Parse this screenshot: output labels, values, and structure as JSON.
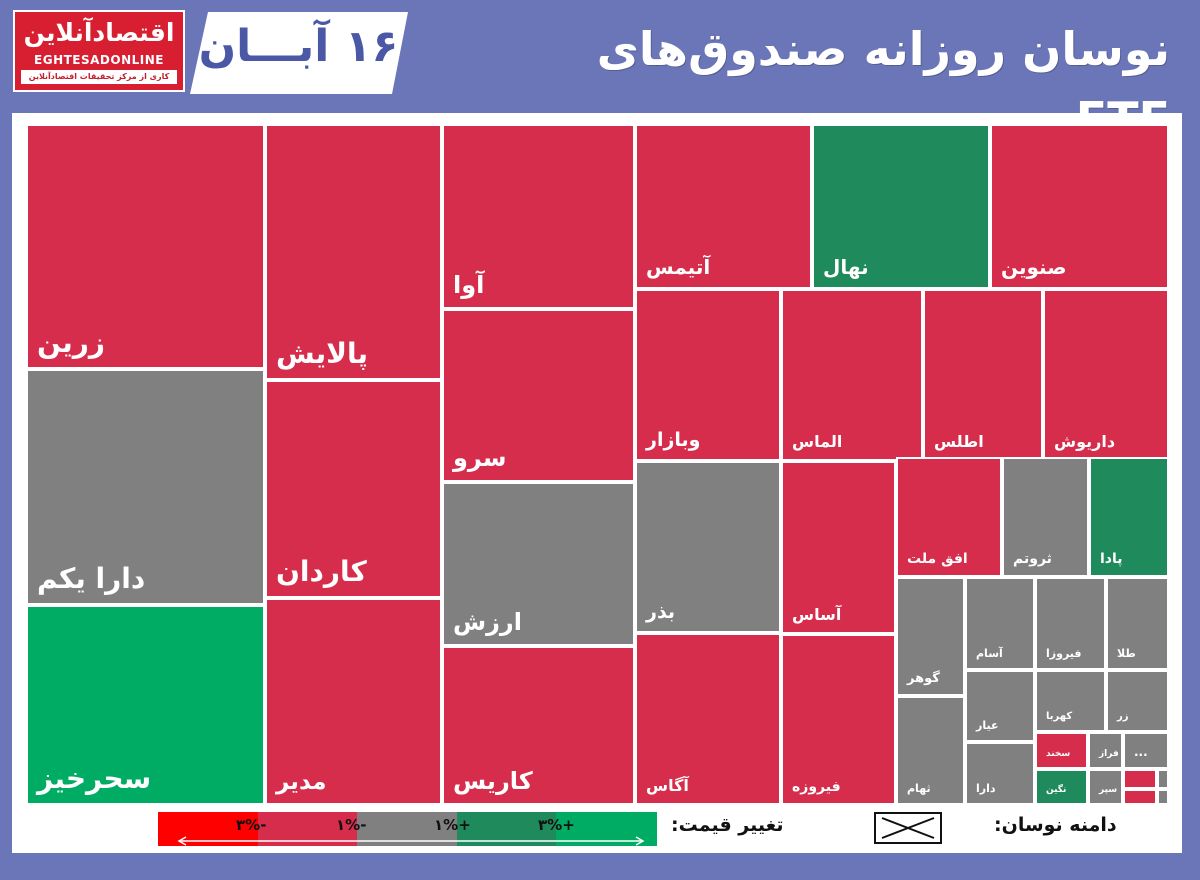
{
  "header": {
    "title": "نوسان روزانه صندوق‌های ETF",
    "date": "۱۶ آبـــان",
    "logo_fa": "اقتصادآنلاین",
    "logo_en": "EGHTESADONLINE",
    "logo_tagline": "کاری از مرکز تحقیقات اقتصادآنلاین"
  },
  "colors": {
    "background": "#6a76b8",
    "red": "#d52d4b",
    "gray": "#808080",
    "dark_green": "#1f8a5b",
    "green": "#00ab63",
    "bright_red": "#ff0000"
  },
  "chart_data": {
    "type": "heatmap",
    "title": "نوسان روزانه صندوق‌های ETF",
    "items": [
      {
        "name": "زرین",
        "color_class": "red"
      },
      {
        "name": "دارا یکم",
        "color_class": "gray"
      },
      {
        "name": "سحرخیز",
        "color_class": "green"
      },
      {
        "name": "پالایش",
        "color_class": "red"
      },
      {
        "name": "کاردان",
        "color_class": "red"
      },
      {
        "name": "مدیر",
        "color_class": "red"
      },
      {
        "name": "آوا",
        "color_class": "red"
      },
      {
        "name": "سرو",
        "color_class": "red"
      },
      {
        "name": "ارزش",
        "color_class": "gray"
      },
      {
        "name": "کاریس",
        "color_class": "red"
      },
      {
        "name": "آتیمس",
        "color_class": "red"
      },
      {
        "name": "نهال",
        "color_class": "dark_green"
      },
      {
        "name": "صنوین",
        "color_class": "red"
      },
      {
        "name": "وبازار",
        "color_class": "red"
      },
      {
        "name": "الماس",
        "color_class": "red"
      },
      {
        "name": "اطلس",
        "color_class": "red"
      },
      {
        "name": "داریوش",
        "color_class": "red"
      },
      {
        "name": "بذر",
        "color_class": "gray"
      },
      {
        "name": "آساس",
        "color_class": "red"
      },
      {
        "name": "افق ملت",
        "color_class": "red"
      },
      {
        "name": "ثروتم",
        "color_class": "gray"
      },
      {
        "name": "پادا",
        "color_class": "dark_green"
      },
      {
        "name": "آگاس",
        "color_class": "red"
      },
      {
        "name": "فیروزه",
        "color_class": "red"
      },
      {
        "name": "گوهر",
        "color_class": "gray"
      },
      {
        "name": "آسام",
        "color_class": "gray"
      },
      {
        "name": "فیروزا",
        "color_class": "gray"
      },
      {
        "name": "طلا",
        "color_class": "gray"
      },
      {
        "name": "ثهام",
        "color_class": "gray"
      },
      {
        "name": "عیار",
        "color_class": "gray"
      },
      {
        "name": "کهربا",
        "color_class": "gray"
      },
      {
        "name": "زر",
        "color_class": "gray"
      },
      {
        "name": "دارا",
        "color_class": "gray"
      },
      {
        "name": "سخند",
        "color_class": "red"
      },
      {
        "name": "فراز",
        "color_class": "gray"
      },
      {
        "name": "...",
        "color_class": "gray"
      },
      {
        "name": "نگین",
        "color_class": "dark_green"
      },
      {
        "name": "سپر",
        "color_class": "gray"
      },
      {
        "name": "",
        "color_class": "red"
      },
      {
        "name": "",
        "color_class": "gray"
      },
      {
        "name": "",
        "color_class": "red"
      },
      {
        "name": "",
        "color_class": "gray"
      }
    ],
    "legend": {
      "price_change_label": "تغییر قیمت:",
      "range_label": "دامنه نوسان:",
      "scale": [
        {
          "label": "-۳%",
          "color": "#ff0000"
        },
        {
          "label": "-۱%",
          "color": "#d52d4b"
        },
        {
          "label": "+۱%",
          "color": "#808080"
        },
        {
          "label": "+۳%",
          "color": "#1f8a5b"
        },
        {
          "label": "",
          "color": "#00ab63"
        }
      ]
    }
  }
}
